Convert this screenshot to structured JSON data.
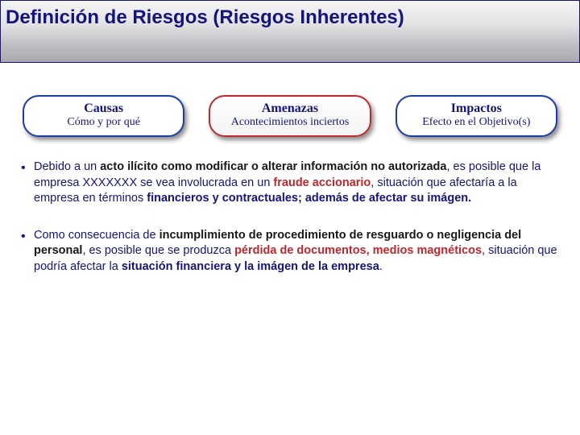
{
  "header": {
    "title": "Definición de Riesgos (Riesgos Inherentes)"
  },
  "pills": [
    {
      "title": "Causas",
      "sub": "Cómo y por qué",
      "variant": "blue"
    },
    {
      "title": "Amenazas",
      "sub": "Acontecimientos inciertos",
      "variant": "red"
    },
    {
      "title": "Impactos",
      "sub": "Efecto en el Objetivo(s)",
      "variant": "blue"
    }
  ],
  "bullets": [
    {
      "segments": [
        {
          "text": "Debido a un ",
          "cls": "navy"
        },
        {
          "text": "acto ilícito como modificar  o alterar información no autorizada",
          "cls": "black bold"
        },
        {
          "text": ", es posible que la empresa XXXXXXX se vea involucrada en un ",
          "cls": "navy"
        },
        {
          "text": "fraude accionario",
          "cls": "red bold"
        },
        {
          "text": ", situación que afectaría a la empresa en términos ",
          "cls": "navy"
        },
        {
          "text": "financieros y contractuales; además de afectar su imágen.",
          "cls": "navy bold"
        }
      ]
    },
    {
      "segments": [
        {
          "text": "Como consecuencia de ",
          "cls": "navy"
        },
        {
          "text": "incumplimiento de procedimiento de resguardo o negligencia del personal",
          "cls": "black bold"
        },
        {
          "text": ", es posible que se produzca ",
          "cls": "navy"
        },
        {
          "text": "pérdida de documentos, medios magnéticos",
          "cls": "red bold"
        },
        {
          "text": ", situación que podría afectar la ",
          "cls": "navy"
        },
        {
          "text": "situación financiera y la imágen de la empresa",
          "cls": "navy bold"
        },
        {
          "text": ".",
          "cls": "navy"
        }
      ]
    }
  ],
  "colors": {
    "navy": "#14147a",
    "red": "#c0272d",
    "black": "#181818",
    "header_gradient": [
      "#f5f5f6",
      "#e1e1e3",
      "#c1c1c5",
      "#a8a8ad"
    ]
  }
}
